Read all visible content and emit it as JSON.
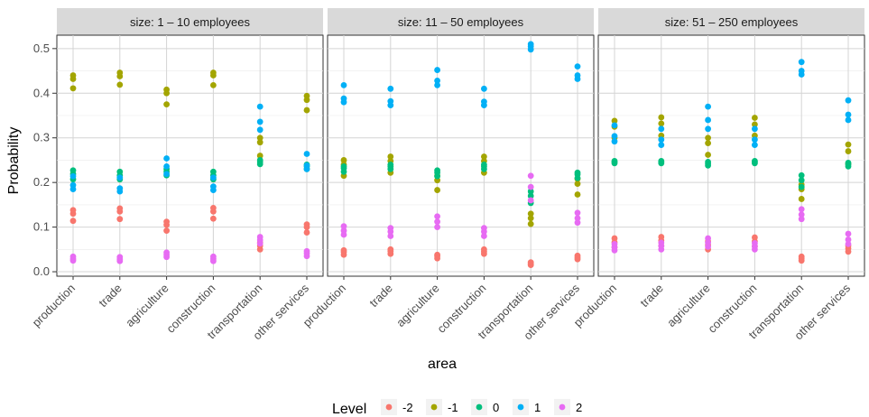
{
  "chart_data": {
    "type": "scatter",
    "xlabel": "area",
    "ylabel": "Probability",
    "ylim": [
      -0.01,
      0.53
    ],
    "y_ticks": [
      "0.0",
      "0.1",
      "0.2",
      "0.3",
      "0.4",
      "0.5"
    ],
    "categories": [
      "production",
      "trade",
      "agriculture",
      "construction",
      "transportation",
      "other services"
    ],
    "grid": true,
    "legend": {
      "title": "Level",
      "position": "bottom",
      "entries": [
        {
          "label": "-2",
          "color": "#F8766D"
        },
        {
          "label": "-1",
          "color": "#A3A500"
        },
        {
          "label": "0",
          "color": "#00BF7D"
        },
        {
          "label": "1",
          "color": "#00B0F6"
        },
        {
          "label": "2",
          "color": "#E76BF3"
        }
      ]
    },
    "panels": [
      {
        "title": "size: 1 – 10 employees",
        "series": [
          {
            "level": "-2",
            "values": [
              [
                0.114,
                0.13,
                0.138
              ],
              [
                0.118,
                0.135,
                0.142
              ],
              [
                0.092,
                0.105,
                0.112
              ],
              [
                0.119,
                0.135,
                0.143
              ],
              [
                0.05,
                0.058,
                0.065
              ],
              [
                0.088,
                0.1,
                0.106
              ]
            ]
          },
          {
            "level": "-1",
            "values": [
              [
                0.411,
                0.432,
                0.44
              ],
              [
                0.419,
                0.438,
                0.446
              ],
              [
                0.375,
                0.4,
                0.408
              ],
              [
                0.418,
                0.44,
                0.446
              ],
              [
                0.26,
                0.29,
                0.3
              ],
              [
                0.362,
                0.385,
                0.394
              ]
            ]
          },
          {
            "level": "0",
            "values": [
              [
                0.207,
                0.219,
                0.227
              ],
              [
                0.207,
                0.216,
                0.224
              ],
              [
                0.216,
                0.224,
                0.23
              ],
              [
                0.207,
                0.216,
                0.224
              ],
              [
                0.241,
                0.246,
                0.25
              ],
              [
                0.23,
                0.236,
                0.24
              ]
            ]
          },
          {
            "level": "1",
            "values": [
              [
                0.185,
                0.194,
                0.214
              ],
              [
                0.18,
                0.187,
                0.211
              ],
              [
                0.219,
                0.236,
                0.254
              ],
              [
                0.183,
                0.191,
                0.211
              ],
              [
                0.318,
                0.336,
                0.37
              ],
              [
                0.23,
                0.238,
                0.264
              ]
            ]
          },
          {
            "level": "2",
            "values": [
              [
                0.025,
                0.029,
                0.034
              ],
              [
                0.024,
                0.028,
                0.033
              ],
              [
                0.033,
                0.038,
                0.043
              ],
              [
                0.024,
                0.029,
                0.034
              ],
              [
                0.063,
                0.071,
                0.078
              ],
              [
                0.035,
                0.041,
                0.046
              ]
            ]
          }
        ]
      },
      {
        "title": "size: 11 – 50 employees",
        "series": [
          {
            "level": "-2",
            "values": [
              [
                0.038,
                0.044,
                0.048
              ],
              [
                0.04,
                0.046,
                0.05
              ],
              [
                0.03,
                0.035,
                0.038
              ],
              [
                0.04,
                0.045,
                0.05
              ],
              [
                0.015,
                0.018,
                0.021
              ],
              [
                0.028,
                0.032,
                0.036
              ]
            ]
          },
          {
            "level": "-1",
            "values": [
              [
                0.215,
                0.24,
                0.25
              ],
              [
                0.222,
                0.248,
                0.258
              ],
              [
                0.183,
                0.205,
                0.215
              ],
              [
                0.222,
                0.248,
                0.258
              ],
              [
                0.107,
                0.12,
                0.13
              ],
              [
                0.173,
                0.197,
                0.208
              ]
            ]
          },
          {
            "level": "0",
            "values": [
              [
                0.224,
                0.232,
                0.236
              ],
              [
                0.23,
                0.236,
                0.24
              ],
              [
                0.214,
                0.222,
                0.227
              ],
              [
                0.23,
                0.236,
                0.24
              ],
              [
                0.154,
                0.17,
                0.18
              ],
              [
                0.21,
                0.218,
                0.222
              ]
            ]
          },
          {
            "level": "1",
            "values": [
              [
                0.38,
                0.388,
                0.418
              ],
              [
                0.373,
                0.382,
                0.41
              ],
              [
                0.418,
                0.428,
                0.452
              ],
              [
                0.373,
                0.381,
                0.41
              ],
              [
                0.498,
                0.505,
                0.51
              ],
              [
                0.432,
                0.44,
                0.46
              ]
            ]
          },
          {
            "level": "2",
            "values": [
              [
                0.083,
                0.092,
                0.102
              ],
              [
                0.08,
                0.09,
                0.098
              ],
              [
                0.1,
                0.112,
                0.124
              ],
              [
                0.08,
                0.09,
                0.098
              ],
              [
                0.16,
                0.19,
                0.215
              ],
              [
                0.11,
                0.12,
                0.132
              ]
            ]
          }
        ]
      },
      {
        "title": "size: 51 – 250 employees",
        "series": [
          {
            "level": "-2",
            "values": [
              [
                0.055,
                0.066,
                0.075
              ],
              [
                0.058,
                0.07,
                0.078
              ],
              [
                0.05,
                0.06,
                0.068
              ],
              [
                0.057,
                0.068,
                0.077
              ],
              [
                0.025,
                0.03,
                0.034
              ],
              [
                0.045,
                0.052,
                0.058
              ]
            ]
          },
          {
            "level": "-1",
            "values": [
              [
                0.3,
                0.325,
                0.338
              ],
              [
                0.305,
                0.332,
                0.346
              ],
              [
                0.262,
                0.288,
                0.3
              ],
              [
                0.305,
                0.33,
                0.345
              ],
              [
                0.163,
                0.185,
                0.195
              ],
              [
                0.242,
                0.27,
                0.285
              ]
            ]
          },
          {
            "level": "0",
            "values": [
              [
                0.243,
                0.246,
                0.248
              ],
              [
                0.243,
                0.246,
                0.248
              ],
              [
                0.238,
                0.242,
                0.246
              ],
              [
                0.243,
                0.246,
                0.248
              ],
              [
                0.19,
                0.205,
                0.216
              ],
              [
                0.236,
                0.24,
                0.244
              ]
            ]
          },
          {
            "level": "1",
            "values": [
              [
                0.292,
                0.304,
                0.328
              ],
              [
                0.284,
                0.296,
                0.32
              ],
              [
                0.32,
                0.34,
                0.37
              ],
              [
                0.284,
                0.296,
                0.32
              ],
              [
                0.442,
                0.45,
                0.47
              ],
              [
                0.34,
                0.352,
                0.384
              ]
            ]
          },
          {
            "level": "2",
            "values": [
              [
                0.048,
                0.055,
                0.062
              ],
              [
                0.05,
                0.058,
                0.065
              ],
              [
                0.056,
                0.065,
                0.075
              ],
              [
                0.05,
                0.057,
                0.064
              ],
              [
                0.118,
                0.128,
                0.14
              ],
              [
                0.062,
                0.072,
                0.085
              ]
            ]
          }
        ]
      }
    ]
  }
}
